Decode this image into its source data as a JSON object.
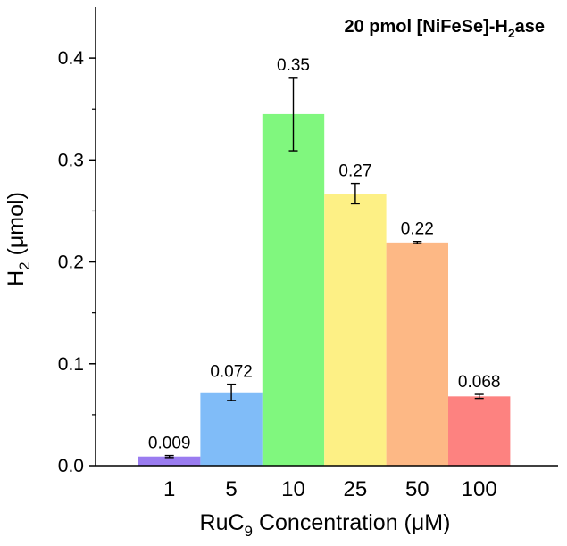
{
  "chart_data": {
    "type": "bar",
    "title": {
      "prefix": "20 pmol [NiFeSe]-H",
      "sub": "2",
      "suffix": "ase"
    },
    "xlabel": {
      "prefix": "RuC",
      "sub": "9",
      "suffix": " Concentration (μM)"
    },
    "ylabel": {
      "prefix": "H",
      "sub": "2",
      "suffix": " (μmol)"
    },
    "categories": [
      "1",
      "5",
      "10",
      "25",
      "50",
      "100"
    ],
    "values": [
      0.009,
      0.072,
      0.345,
      0.267,
      0.219,
      0.068
    ],
    "errors": [
      0.001,
      0.008,
      0.036,
      0.01,
      0.001,
      0.002
    ],
    "data_labels": [
      "0.009",
      "0.072",
      "0.35",
      "0.27",
      "0.22",
      "0.068"
    ],
    "colors": [
      "#9a7cf0",
      "#80bcf8",
      "#80f77e",
      "#fdf085",
      "#fdb885",
      "#fd8280"
    ],
    "ylim": [
      0,
      0.45
    ],
    "yticks": [
      0.0,
      0.1,
      0.2,
      0.3,
      0.4
    ],
    "ytick_labels": [
      "0.0",
      "0.1",
      "0.2",
      "0.3",
      "0.4"
    ],
    "grid": false,
    "legend": "none"
  }
}
